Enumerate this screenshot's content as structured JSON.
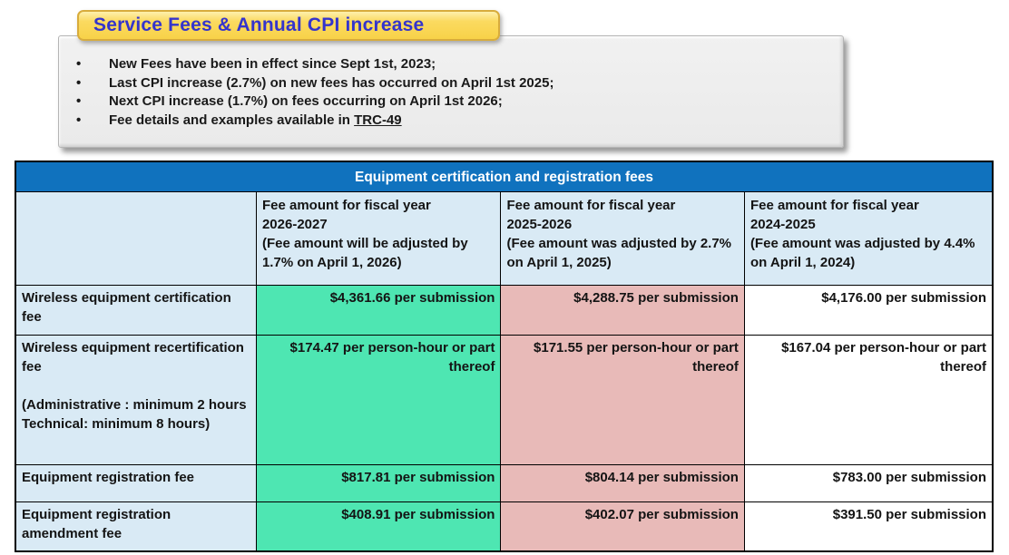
{
  "banner": {
    "title": "Service Fees & Annual CPI increase"
  },
  "notes": {
    "bullet_glyph": "•",
    "bullets": [
      "New Fees have been in effect since Sept 1st, 2023;",
      "Last CPI increase (2.7%) on new fees has occurred on April 1st 2025;",
      "Next CPI increase (1.7%) on fees occurring on April 1st 2026;"
    ],
    "link_bullet": {
      "prefix": "Fee details and examples available in ",
      "link_text": "TRC-49"
    }
  },
  "table": {
    "title": "Equipment certification and registration fees",
    "column_headers": [
      "",
      "Fee amount for fiscal year\n2026-2027\n(Fee amount will be adjusted by 1.7% on April 1, 2026)",
      "Fee amount for fiscal year\n2025-2026\n(Fee amount was adjusted by 2.7% on April 1, 2025)",
      "Fee amount for fiscal year\n2024-2025\n(Fee amount was adjusted by 4.4% on April 1, 2024)"
    ],
    "rows": [
      {
        "label": "Wireless equipment certification fee",
        "values": [
          "$4,361.66 per submission",
          "$4,288.75 per submission",
          "$4,176.00 per submission"
        ]
      },
      {
        "label": "Wireless equipment recertification fee\n\n(Administrative : minimum 2 hours\nTechnical: minimum 8 hours)",
        "values": [
          "$174.47 per person-hour or part thereof",
          "$171.55 per person-hour or part thereof",
          "$167.04 per person-hour or part thereof"
        ]
      },
      {
        "label": "Equipment registration fee",
        "values": [
          "$817.81 per submission",
          "$804.14 per submission",
          "$783.00 per submission"
        ]
      },
      {
        "label": "Equipment registration amendment fee",
        "values": [
          "$408.91 per submission",
          "$402.07 per submission",
          "$391.50 per submission"
        ]
      }
    ]
  },
  "colors": {
    "table_title_bg": "#1072BE",
    "label_cell_bg": "#D9EAF5",
    "fy2026_2027_bg": "#4EE6B2",
    "fy2025_2026_bg": "#E8BAB8",
    "fy2024_2025_bg": "#FFFFFF",
    "banner_bg": "#FBDA60",
    "banner_text": "#3434CD",
    "notes_box_bg": "#EDEDED"
  }
}
